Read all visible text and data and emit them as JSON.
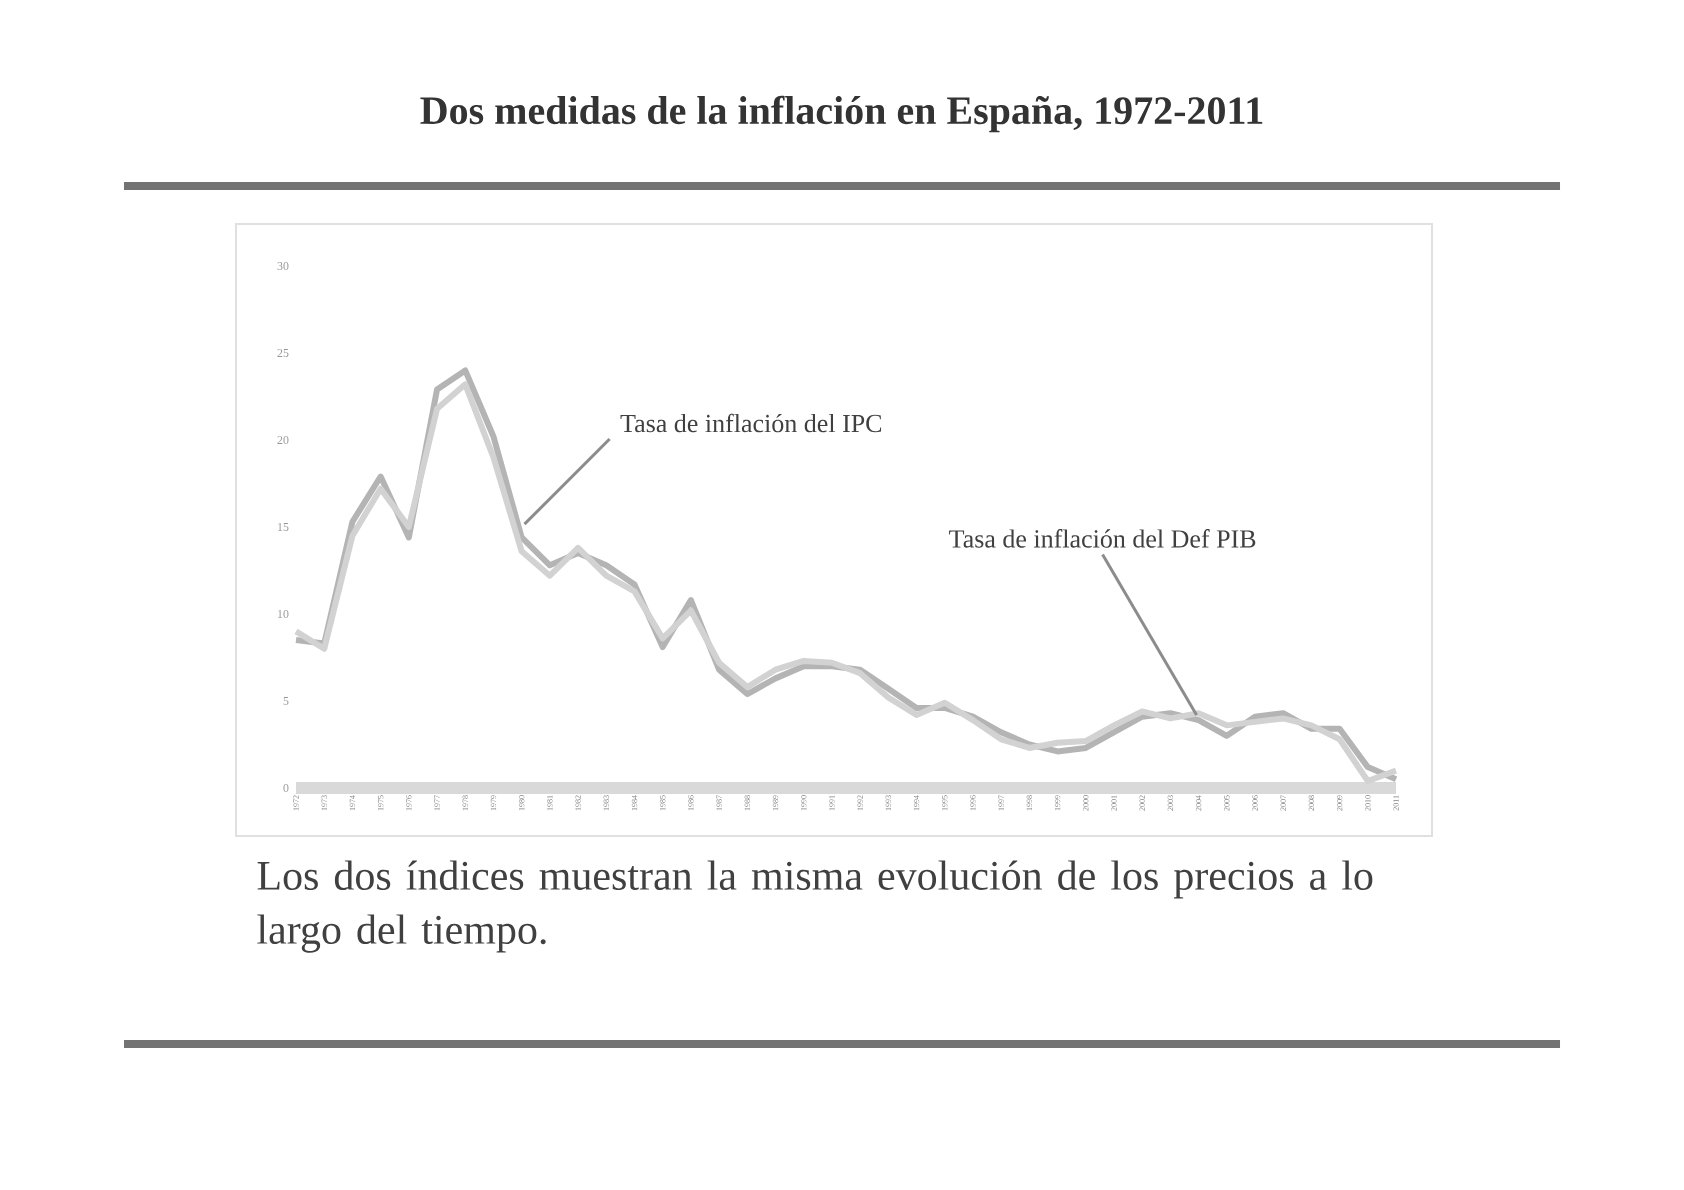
{
  "chart_data": {
    "type": "line",
    "title": "Dos medidas de la inflación en España, 1972-2011",
    "x": [
      1972,
      1973,
      1974,
      1975,
      1976,
      1977,
      1978,
      1979,
      1980,
      1981,
      1982,
      1983,
      1984,
      1985,
      1986,
      1987,
      1988,
      1989,
      1990,
      1991,
      1992,
      1993,
      1994,
      1995,
      1996,
      1997,
      1998,
      1999,
      2000,
      2001,
      2002,
      2003,
      2004,
      2005,
      2006,
      2007,
      2008,
      2009,
      2010,
      2011
    ],
    "series": [
      {
        "color": "#b4b4b4",
        "values": [
          8.5,
          8.3,
          15.3,
          17.9,
          14.4,
          22.9,
          24.0,
          20.2,
          14.4,
          12.8,
          13.5,
          12.8,
          11.7,
          8.1,
          10.8,
          6.8,
          5.4,
          6.3,
          7.0,
          7.0,
          6.8,
          5.7,
          4.6,
          4.6,
          4.1,
          3.2,
          2.5,
          2.1,
          2.3,
          3.2,
          4.1,
          4.3,
          3.9,
          3.0,
          4.1,
          4.3,
          3.4,
          3.4,
          1.2,
          0.5
        ]
      },
      {
        "color": "#d2d2d2",
        "values": [
          9.0,
          8.0,
          14.5,
          17.2,
          15.0,
          21.8,
          23.2,
          19.0,
          13.6,
          12.2,
          13.8,
          12.2,
          11.3,
          8.6,
          10.2,
          7.2,
          5.8,
          6.8,
          7.3,
          7.2,
          6.6,
          5.2,
          4.2,
          4.9,
          3.9,
          2.8,
          2.3,
          2.6,
          2.7,
          3.6,
          4.4,
          4.0,
          4.3,
          3.6,
          3.8,
          4.0,
          3.6,
          2.8,
          0.4,
          1.0
        ]
      }
    ],
    "xlim": [
      1972,
      2011
    ],
    "xticks": [
      1972,
      1973,
      1974,
      1975,
      1976,
      1977,
      1978,
      1979,
      1980,
      1981,
      1982,
      1983,
      1984,
      1985,
      1986,
      1987,
      1988,
      1989,
      1990,
      1991,
      1992,
      1993,
      1994,
      1995,
      1996,
      1997,
      1998,
      1999,
      2000,
      2001,
      2002,
      2003,
      2004,
      2005,
      2006,
      2007,
      2008,
      2009,
      2010,
      2011
    ],
    "ylim": [
      0,
      30
    ],
    "yticks": [
      0,
      5,
      10,
      15,
      20,
      25,
      30
    ],
    "marker": "none",
    "line_style": "solid",
    "annotations": [
      {
        "text": "Tasa de inflación del IPC",
        "x": 1980,
        "y": 15
      },
      {
        "text": "Tasa de inflación del Def PIB",
        "x": 2004,
        "y": 4
      },
      "Los dos índices muestran la misma evolución de los precios a lo largo del tiempo."
    ]
  }
}
